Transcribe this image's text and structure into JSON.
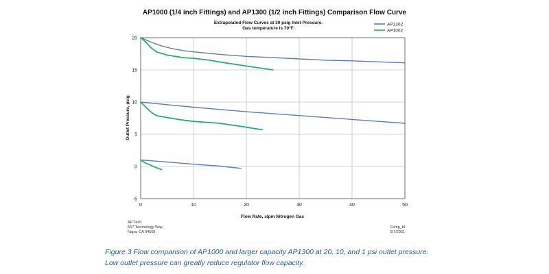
{
  "chart_data": {
    "type": "line",
    "title": "AP1000 (1/4 inch Fittings) and AP1300 (1/2 inch Fittings) Comparison Flow Curve",
    "subtitle": [
      "Extrapolated Flow Curves at 30 psig Inlet Pressure.",
      "Gas temperature is 70°F."
    ],
    "xlabel": "Flow Rate, slpm Nitrogen Gas",
    "ylabel": "Outlet Pressure, psig",
    "xlim": [
      0,
      50
    ],
    "ylim": [
      -5,
      20
    ],
    "xticks": [
      "0",
      "10",
      "20",
      "30",
      "40",
      "50"
    ],
    "yticks": [
      "20",
      "15",
      "10",
      "5",
      "0",
      "-5"
    ],
    "grid": true,
    "legend_position": "top-right",
    "legend": [
      "AP1302",
      "AP1002"
    ],
    "series": [
      {
        "name": "AP1302",
        "color": "#5b7db5",
        "curves": [
          [
            [
              0,
              20
            ],
            [
              2,
              19.3
            ],
            [
              4,
              18.7
            ],
            [
              6,
              18.3
            ],
            [
              8,
              18.0
            ],
            [
              10,
              17.8
            ],
            [
              15,
              17.4
            ],
            [
              20,
              17.1
            ],
            [
              25,
              16.9
            ],
            [
              30,
              16.7
            ],
            [
              35,
              16.5
            ],
            [
              40,
              16.4
            ],
            [
              45,
              16.25
            ],
            [
              50,
              16.1
            ]
          ],
          [
            [
              0,
              10
            ],
            [
              5,
              9.6
            ],
            [
              10,
              9.2
            ],
            [
              15,
              8.85
            ],
            [
              20,
              8.5
            ],
            [
              25,
              8.2
            ],
            [
              30,
              7.9
            ],
            [
              35,
              7.6
            ],
            [
              40,
              7.3
            ],
            [
              45,
              7.0
            ],
            [
              50,
              6.7
            ]
          ],
          [
            [
              0,
              1
            ],
            [
              5,
              0.7
            ],
            [
              10,
              0.35
            ],
            [
              15,
              0.05
            ],
            [
              19,
              -0.3
            ]
          ]
        ]
      },
      {
        "name": "AP1002",
        "color": "#2aad6a",
        "curves": [
          [
            [
              0,
              20
            ],
            [
              1,
              19.3
            ],
            [
              2,
              18.4
            ],
            [
              3,
              17.8
            ],
            [
              5,
              17.3
            ],
            [
              8,
              16.9
            ],
            [
              10,
              16.8
            ],
            [
              13,
              16.5
            ],
            [
              16,
              16.1
            ],
            [
              20,
              15.6
            ],
            [
              25,
              15.0
            ]
          ],
          [
            [
              0,
              10
            ],
            [
              1,
              9.2
            ],
            [
              2,
              8.4
            ],
            [
              3,
              7.9
            ],
            [
              5,
              7.6
            ],
            [
              8,
              7.2
            ],
            [
              10,
              7.0
            ],
            [
              15,
              6.7
            ],
            [
              20,
              6.1
            ],
            [
              23,
              5.7
            ]
          ],
          [
            [
              0,
              1
            ],
            [
              1,
              0.5
            ],
            [
              2,
              0.15
            ],
            [
              3,
              -0.2
            ],
            [
              4,
              -0.5
            ]
          ]
        ]
      }
    ],
    "footer_left": [
      "AP Tech",
      "667 Technology Way",
      "Napa, CA 94558"
    ],
    "footer_right": [
      "Comp_bl",
      "5/7/2021"
    ]
  },
  "caption": [
    "Figure 3  Flow comparison of AP1000 and larger capacity AP1300 at 20, 10, and 1 psi outlet pressure.",
    "Low outlet pressure can greatly reduce regulator flow capacity."
  ]
}
